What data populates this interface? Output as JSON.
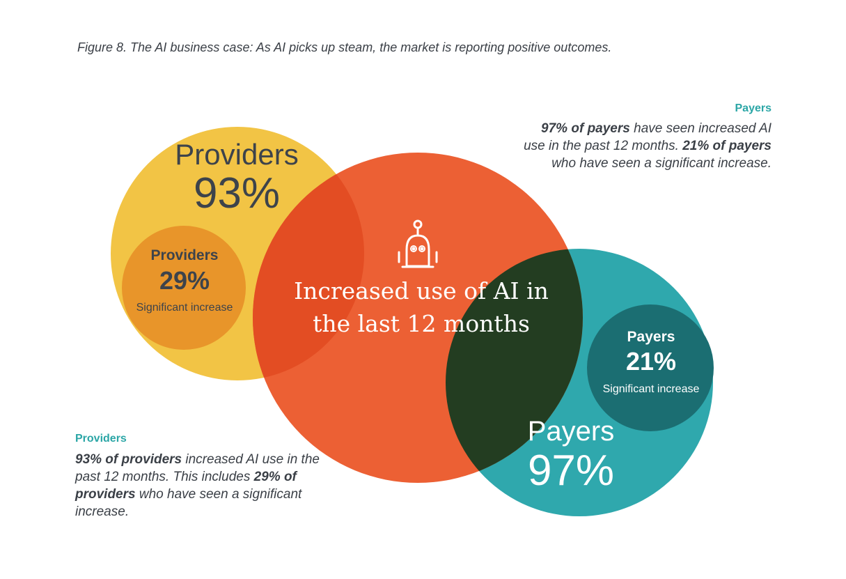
{
  "caption": "Figure 8.  The AI business case: As AI picks up steam, the market is reporting positive outcomes.",
  "colors": {
    "providers_circle": "#f2c445",
    "providers_inner": "#e8952a",
    "center_circle": "#ec6034",
    "overlap_providers_center": "#e34d23",
    "payers_circle": "#2fa8ad",
    "payers_inner": "#1b6e72",
    "overlap_center_payers": "#233d21",
    "accent_teal": "#2ba6a6"
  },
  "providers_circle": {
    "label": "Providers",
    "value": "93%"
  },
  "providers_inner": {
    "label": "Providers",
    "value": "29%",
    "sub": "Significant increase"
  },
  "center": {
    "icon": "robot-icon",
    "text": "Increased use of AI in the last 12 months"
  },
  "payers_inner": {
    "label": "Payers",
    "value": "21%",
    "sub": "Significant increase"
  },
  "payers_circle": {
    "label": "Payers",
    "value": "97%"
  },
  "payers_note": {
    "heading": "Payers",
    "b1": "97% of payers",
    "t1": " have seen increased AI use in the past 12 months. ",
    "b2": "21% of payers",
    "t2": " who have seen a significant increase."
  },
  "providers_note": {
    "heading": "Providers",
    "b1": "93% of providers",
    "t1": " increased AI use in the past 12 months. This includes ",
    "b2": "29% of providers",
    "t2": " who have seen a significant increase."
  }
}
